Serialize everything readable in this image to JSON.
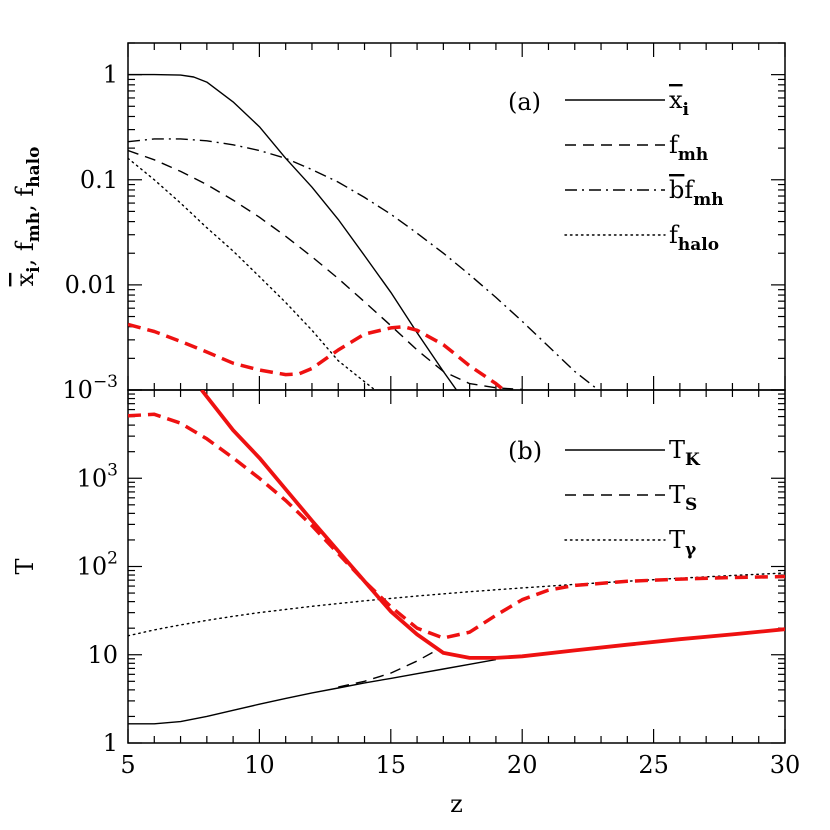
{
  "chart_data": [
    {
      "type": "line",
      "panel_label": "(a)",
      "ylabel": {
        "parts": [
          {
            "t": "x",
            "over": true
          },
          {
            "t": "i",
            "sub": true
          },
          {
            "t": ",  f"
          },
          {
            "t": "mh",
            "sub": true
          },
          {
            "t": ",  f"
          },
          {
            "t": "halo",
            "sub": true
          }
        ]
      },
      "yscale": "log",
      "xlim": [
        5,
        30
      ],
      "ylim": [
        0.001,
        2
      ],
      "yticks": [
        {
          "v": 1,
          "label": "1"
        },
        {
          "v": 0.1,
          "label": "0.1"
        },
        {
          "v": 0.01,
          "label": "0.01"
        },
        {
          "v": 0.001,
          "base": "10",
          "exp": "−3"
        }
      ],
      "legend_position": "top-right",
      "series": [
        {
          "key": "xi",
          "legend": {
            "main": "x",
            "overbar": true,
            "sub": "i"
          },
          "color": "#000000",
          "style": "solid",
          "width": 1.4,
          "x": [
            5,
            6,
            7,
            7.5,
            8,
            9,
            10,
            11,
            12,
            13,
            14,
            15,
            16,
            17,
            17.5
          ],
          "y": [
            1,
            1,
            0.99,
            0.95,
            0.85,
            0.55,
            0.32,
            0.16,
            0.085,
            0.042,
            0.019,
            0.0085,
            0.0035,
            0.0015,
            0.001
          ]
        },
        {
          "key": "fmh",
          "legend": {
            "main": "f",
            "sub": "mh"
          },
          "color": "#000000",
          "style": "dashed",
          "width": 1.4,
          "x": [
            5,
            6,
            7,
            8,
            9,
            10,
            11,
            12,
            13,
            14,
            15,
            16,
            17,
            18,
            19,
            20
          ],
          "y": [
            0.19,
            0.155,
            0.12,
            0.09,
            0.064,
            0.044,
            0.029,
            0.0185,
            0.0115,
            0.0069,
            0.0041,
            0.0024,
            0.0015,
            0.00115,
            0.00105,
            0.00101
          ]
        },
        {
          "key": "bfmh",
          "legend": {
            "main": "f",
            "sub": "mh",
            "prefix": "b",
            "prefix_overbar": true
          },
          "color": "#000000",
          "style": "dashdot",
          "width": 1.4,
          "x": [
            5,
            6,
            7,
            8,
            9,
            10,
            11,
            12,
            13,
            14,
            15,
            16,
            17,
            18,
            19,
            20,
            21,
            22,
            22.9
          ],
          "y": [
            0.23,
            0.245,
            0.245,
            0.235,
            0.215,
            0.19,
            0.16,
            0.125,
            0.095,
            0.068,
            0.047,
            0.031,
            0.02,
            0.0125,
            0.0076,
            0.0045,
            0.0026,
            0.0015,
            0.001
          ]
        },
        {
          "key": "fhalo",
          "legend": {
            "main": "f",
            "sub": "halo"
          },
          "color": "#000000",
          "style": "dotted",
          "width": 1.4,
          "x": [
            5,
            6,
            7,
            8,
            9,
            10,
            11,
            12,
            13,
            14,
            14.4
          ],
          "y": [
            0.16,
            0.1,
            0.06,
            0.035,
            0.021,
            0.012,
            0.0068,
            0.0037,
            0.0019,
            0.0012,
            0.001
          ]
        },
        {
          "key": "red_a",
          "color": "#ee1111",
          "style": "dashed-thick",
          "width": 3.5,
          "x": [
            5,
            6,
            7,
            8,
            9,
            10,
            11,
            11.5,
            12,
            13,
            14,
            15,
            15.5,
            16,
            17,
            18,
            19,
            19.3
          ],
          "y": [
            0.0042,
            0.0036,
            0.0029,
            0.0023,
            0.0018,
            0.00155,
            0.0014,
            0.00142,
            0.0016,
            0.0024,
            0.0034,
            0.0039,
            0.004,
            0.0037,
            0.0027,
            0.0017,
            0.00115,
            0.001
          ]
        }
      ]
    },
    {
      "type": "line",
      "panel_label": "(b)",
      "ylabel": {
        "parts": [
          {
            "t": "T"
          }
        ]
      },
      "xlabel": "z",
      "yscale": "log",
      "xlim": [
        5,
        30
      ],
      "ylim": [
        1,
        10000
      ],
      "xticks": [
        5,
        10,
        15,
        20,
        25,
        30
      ],
      "yticks": [
        {
          "v": 1,
          "label": "1"
        },
        {
          "v": 10,
          "label": "10"
        },
        {
          "v": 100,
          "base": "10",
          "exp": "2"
        },
        {
          "v": 1000,
          "base": "10",
          "exp": "3"
        }
      ],
      "legend_position": "top-right",
      "series": [
        {
          "key": "TK",
          "legend": {
            "main": "T",
            "sub": "K"
          },
          "color": "#000000",
          "style": "solid",
          "width": 1.4,
          "x": [
            5,
            6,
            7,
            8,
            9,
            10,
            11,
            12,
            13,
            14,
            15,
            16,
            17,
            18,
            19
          ],
          "y": [
            1.65,
            1.65,
            1.75,
            2.0,
            2.35,
            2.75,
            3.2,
            3.7,
            4.2,
            4.8,
            5.4,
            6.1,
            6.9,
            7.8,
            8.8
          ]
        },
        {
          "key": "TS",
          "legend": {
            "main": "T",
            "sub": "S"
          },
          "color": "#000000",
          "style": "dashed",
          "width": 1.4,
          "x": [
            13,
            14,
            15,
            16,
            16.8
          ],
          "y": [
            4.3,
            5.0,
            6.2,
            8.5,
            11.5
          ]
        },
        {
          "key": "Tgamma",
          "legend": {
            "main": "T",
            "sub": "γ"
          },
          "color": "#000000",
          "style": "dotted",
          "width": 1.4,
          "x": [
            5,
            6,
            7,
            8,
            9,
            10,
            12,
            14,
            16,
            18,
            20,
            22,
            24,
            26,
            28,
            30
          ],
          "y": [
            16.4,
            19.1,
            21.8,
            24.5,
            27.3,
            30.0,
            35.4,
            40.9,
            46.3,
            51.8,
            57.2,
            62.7,
            68.1,
            73.6,
            79.0,
            84.5
          ]
        },
        {
          "key": "red_TK",
          "color": "#ee1111",
          "style": "solid-thick",
          "width": 3.8,
          "x": [
            7.8,
            9,
            10,
            11,
            12,
            13,
            14,
            15,
            16,
            17,
            18,
            19,
            20,
            22,
            24,
            26,
            28,
            30
          ],
          "y": [
            10000,
            3500,
            1700,
            750,
            330,
            150,
            68,
            31,
            17,
            10.5,
            9.2,
            9.2,
            9.6,
            11.2,
            13.0,
            15.0,
            17.0,
            19.5
          ]
        },
        {
          "key": "red_TS",
          "color": "#ee1111",
          "style": "dashed-thick",
          "width": 3.5,
          "x": [
            5,
            6,
            7,
            8,
            9,
            10,
            11,
            12,
            13,
            14,
            15,
            16,
            17,
            18,
            19,
            20,
            21,
            22,
            24,
            26,
            28,
            30
          ],
          "y": [
            5100,
            5300,
            4200,
            2800,
            1700,
            1000,
            560,
            290,
            140,
            68,
            35,
            20,
            15.5,
            18,
            28,
            42,
            54,
            61,
            68,
            72,
            75,
            77
          ]
        }
      ]
    }
  ]
}
